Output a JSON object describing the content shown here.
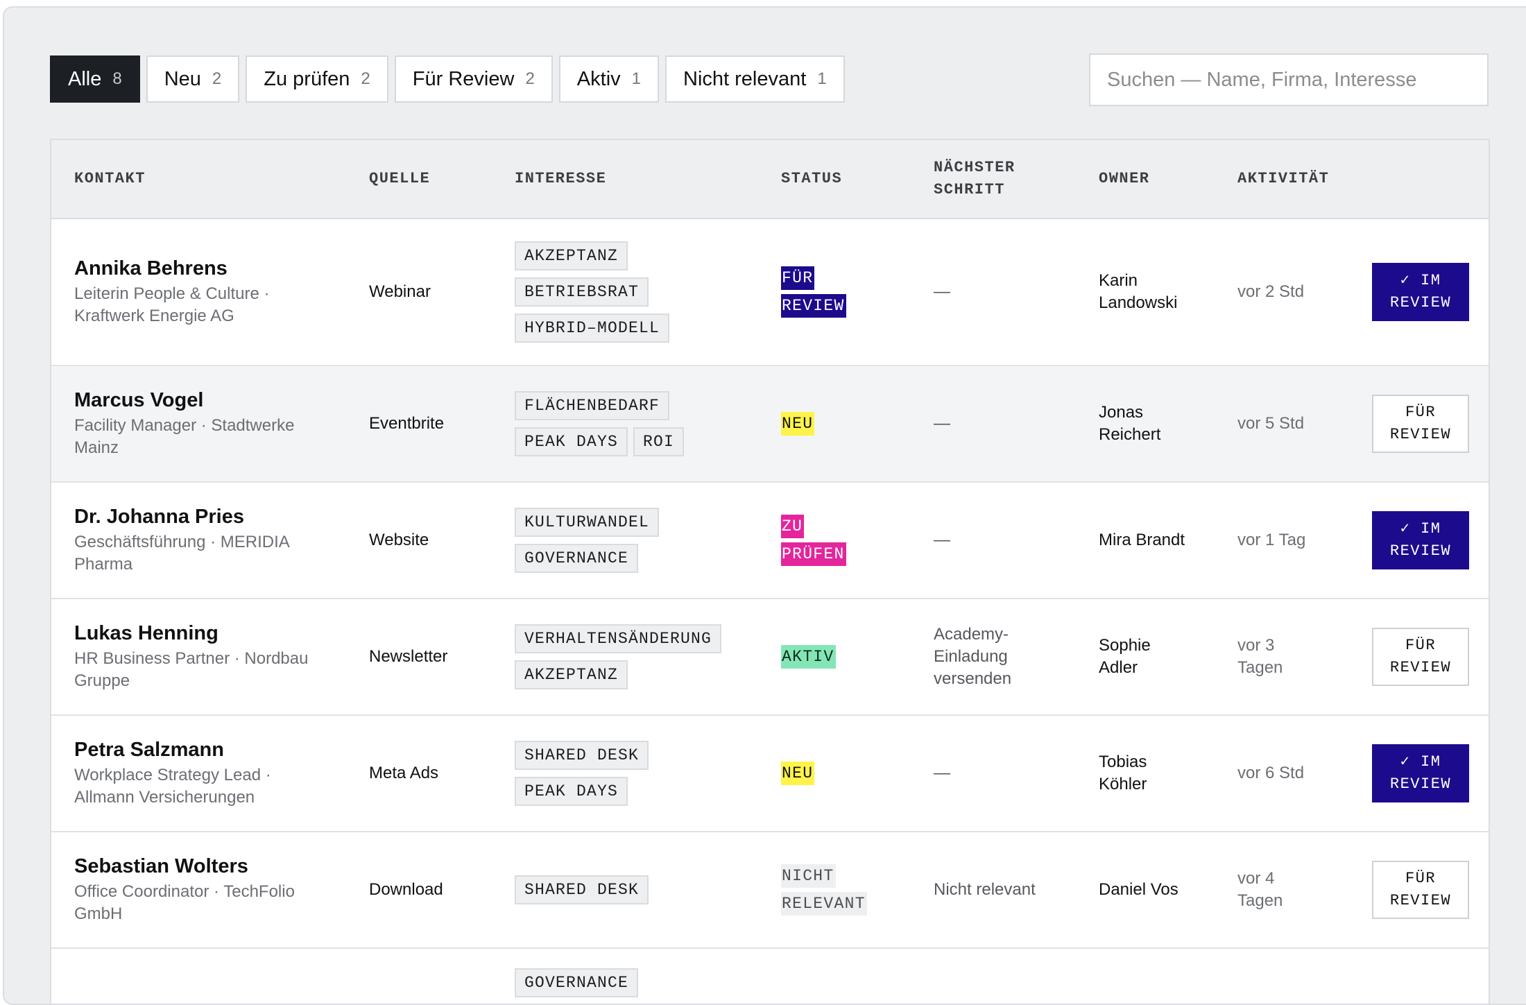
{
  "tabs": [
    {
      "label": "Alle",
      "count": "8",
      "active": true
    },
    {
      "label": "Neu",
      "count": "2"
    },
    {
      "label": "Zu prüfen",
      "count": "2"
    },
    {
      "label": "Für Review",
      "count": "2"
    },
    {
      "label": "Aktiv",
      "count": "1"
    },
    {
      "label": "Nicht relevant",
      "count": "1"
    }
  ],
  "search": {
    "placeholder": "Suchen — Name, Firma, Interesse",
    "value": ""
  },
  "columns": {
    "contact": "KONTAKT",
    "source": "QUELLE",
    "interest": "INTERESSE",
    "status": "STATUS",
    "next_step_1": "NÄCHSTER",
    "next_step_2": "SCHRITT",
    "owner": "OWNER",
    "activity": "AKTIVITÄT"
  },
  "rows": [
    {
      "name": "Annika Behrens",
      "subtitle_1": "Leiterin People & Culture ·",
      "subtitle_2": "Kraftwerk Energie AG",
      "source": "Webinar",
      "tags": [
        "AKZEPTANZ",
        "BETRIEBSRAT",
        "HYBRID–MODELL"
      ],
      "status_1": "FÜR",
      "status_2": "REVIEW",
      "next_step": "—",
      "owner_1": "Karin",
      "owner_2": "Landowski",
      "activity": "vor 2 Std",
      "action_1": "✓ IM",
      "action_2": "REVIEW"
    },
    {
      "name": "Marcus Vogel",
      "subtitle_1": "Facility Manager · Stadtwerke",
      "subtitle_2": "Mainz",
      "source": "Eventbrite",
      "tags": [
        "FLÄCHENBEDARF",
        "PEAK DAYS",
        "ROI"
      ],
      "status_1": "NEU",
      "next_step": "—",
      "owner_1": "Jonas",
      "owner_2": "Reichert",
      "activity": "vor 5 Std",
      "action_1": "FÜR",
      "action_2": "REVIEW"
    },
    {
      "name": "Dr. Johanna Pries",
      "subtitle_1": "Geschäftsführung · MERIDIA",
      "subtitle_2": "Pharma",
      "source": "Website",
      "tags": [
        "KULTURWANDEL",
        "GOVERNANCE"
      ],
      "status_1": "ZU",
      "status_2": "PRÜFEN",
      "next_step": "—",
      "owner_1": "Mira Brandt",
      "activity": "vor 1 Tag",
      "action_1": "✓ IM",
      "action_2": "REVIEW"
    },
    {
      "name": "Lukas Henning",
      "subtitle_1": "HR Business Partner · Nordbau",
      "subtitle_2": "Gruppe",
      "source": "Newsletter",
      "tags": [
        "VERHALTENSÄNDERUNG",
        "AKZEPTANZ"
      ],
      "status_1": "AKTIV",
      "next_step_1": "Academy-",
      "next_step_2": "Einladung",
      "next_step_3": "versenden",
      "owner_1": "Sophie",
      "owner_2": "Adler",
      "activity_1": "vor 3",
      "activity_2": "Tagen",
      "action_1": "FÜR",
      "action_2": "REVIEW"
    },
    {
      "name": "Petra Salzmann",
      "subtitle_1": "Workplace Strategy Lead ·",
      "subtitle_2": "Allmann Versicherungen",
      "source": "Meta Ads",
      "tags": [
        "SHARED DESK",
        "PEAK DAYS"
      ],
      "status_1": "NEU",
      "next_step": "—",
      "owner_1": "Tobias",
      "owner_2": "Köhler",
      "activity": "vor 6 Std",
      "action_1": "✓ IM",
      "action_2": "REVIEW"
    },
    {
      "name": "Sebastian Wolters",
      "subtitle_1": "Office Coordinator · TechFolio",
      "subtitle_2": "GmbH",
      "source": "Download",
      "tags": [
        "SHARED DESK"
      ],
      "status_1": "NICHT",
      "status_2": "RELEVANT",
      "next_step": "Nicht relevant",
      "owner_1": "Daniel Vos",
      "activity_1": "vor 4",
      "activity_2": "Tagen",
      "action_1": "FÜR",
      "action_2": "REVIEW"
    },
    {
      "tags": [
        "GOVERNANCE"
      ]
    }
  ]
}
